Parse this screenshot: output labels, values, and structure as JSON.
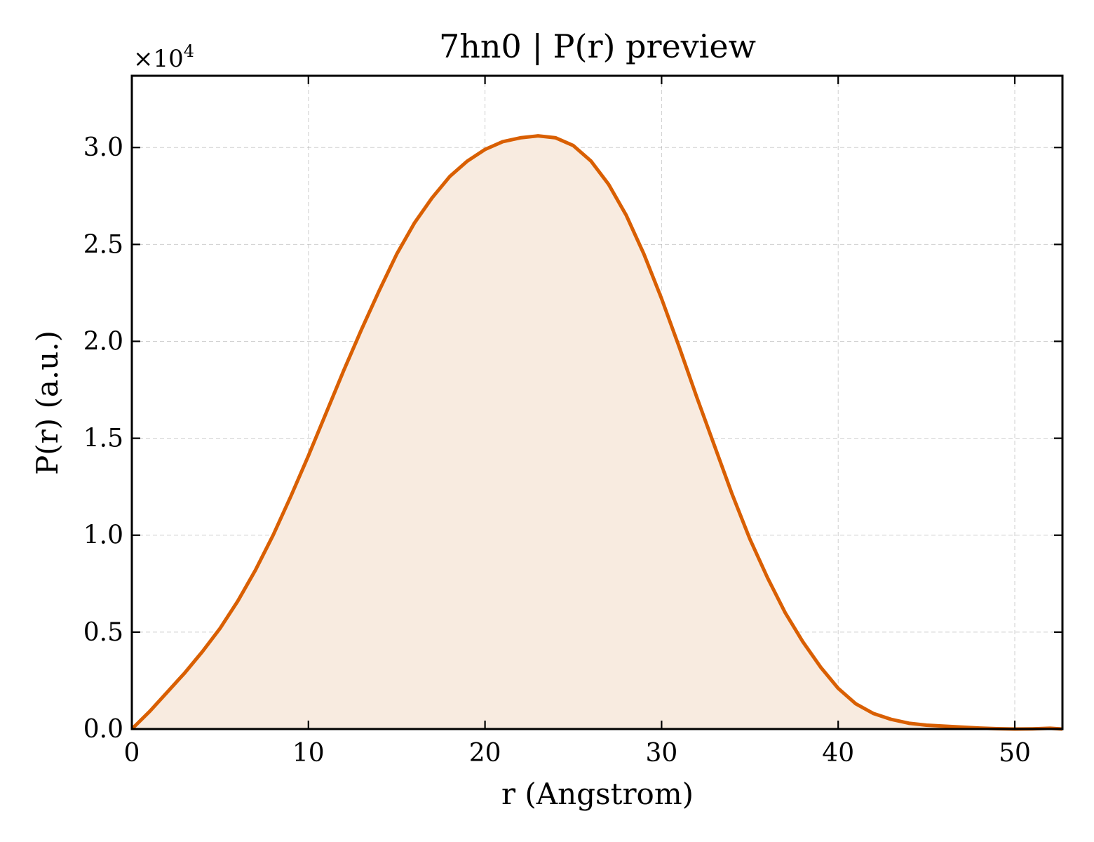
{
  "chart_data": {
    "type": "area",
    "title": "7hn0 | P(r) preview",
    "xlabel": "r (Angstrom)",
    "ylabel": "P(r) (a.u.)",
    "y_offset_label": "×10",
    "y_offset_exponent": "4",
    "xlim": [
      0,
      52.7
    ],
    "ylim": [
      0,
      3.37
    ],
    "x_ticks": [
      0,
      10,
      20,
      30,
      40,
      50
    ],
    "x_tick_labels": [
      "0",
      "10",
      "20",
      "30",
      "40",
      "50"
    ],
    "y_ticks": [
      0,
      0.5,
      1.0,
      1.5,
      2.0,
      2.5,
      3.0
    ],
    "y_tick_labels": [
      "0.0",
      "0.5",
      "1.0",
      "1.5",
      "2.0",
      "2.5",
      "3.0"
    ],
    "grid": true,
    "line_color": "#d95f02",
    "fill_color": "#f8ebe0",
    "series": [
      {
        "x": [
          0,
          1,
          2,
          3,
          4,
          5,
          6,
          7,
          8,
          9,
          10,
          11,
          12,
          13,
          14,
          15,
          16,
          17,
          18,
          19,
          20,
          21,
          22,
          23,
          24,
          25,
          26,
          27,
          28,
          29,
          30,
          31,
          32,
          33,
          34,
          35,
          36,
          37,
          38,
          39,
          40,
          41,
          42,
          43,
          44,
          45,
          46,
          47,
          48,
          49,
          50,
          51,
          52,
          52.7
        ],
        "y": [
          0.0,
          0.09,
          0.19,
          0.29,
          0.4,
          0.52,
          0.66,
          0.82,
          1.0,
          1.2,
          1.41,
          1.63,
          1.85,
          2.06,
          2.26,
          2.45,
          2.61,
          2.74,
          2.85,
          2.93,
          2.99,
          3.03,
          3.05,
          3.06,
          3.05,
          3.01,
          2.93,
          2.81,
          2.65,
          2.45,
          2.22,
          1.97,
          1.71,
          1.46,
          1.21,
          0.98,
          0.78,
          0.6,
          0.45,
          0.32,
          0.21,
          0.13,
          0.08,
          0.05,
          0.03,
          0.02,
          0.015,
          0.01,
          0.005,
          0.002,
          0.0,
          0.001,
          0.004,
          0.0
        ]
      }
    ]
  }
}
